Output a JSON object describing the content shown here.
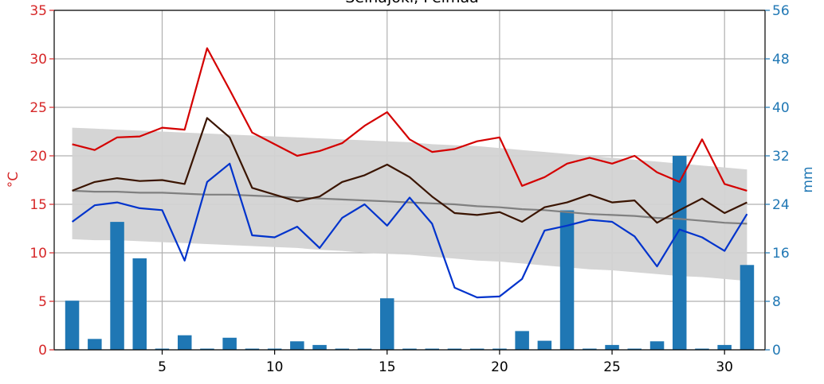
{
  "chart_data": {
    "type": "line",
    "title": "Seinäjoki, Pelmaa",
    "colors": {
      "temp_axis": "#d62728",
      "precip_axis": "#1f77b4",
      "tmax": "#d40000",
      "tmean": "#3a1400",
      "tmin": "#0033cc",
      "climate_mean": "#808080",
      "climate_band": "#d3d3d3",
      "precip_bars": "#1f77b4",
      "grid": "#b0b0b0"
    },
    "x": [
      1,
      2,
      3,
      4,
      5,
      6,
      7,
      8,
      9,
      10,
      11,
      12,
      13,
      14,
      15,
      16,
      17,
      18,
      19,
      20,
      21,
      22,
      23,
      24,
      25,
      26,
      27,
      28,
      29,
      30,
      31
    ],
    "xlim": [
      0.2,
      31.8
    ],
    "xticks": [
      5,
      10,
      15,
      20,
      25,
      30
    ],
    "left_axis": {
      "label": "°C",
      "ylim": [
        0,
        35
      ],
      "ticks": [
        0,
        5,
        10,
        15,
        20,
        25,
        30,
        35
      ]
    },
    "right_axis": {
      "label": "mm",
      "ylim": [
        0,
        56
      ],
      "ticks": [
        0,
        8,
        16,
        24,
        32,
        40,
        48,
        56
      ]
    },
    "grid": true,
    "series": [
      {
        "key": "tmax",
        "axis": "left",
        "kind": "line",
        "values": [
          21.2,
          20.6,
          21.9,
          22.0,
          22.9,
          22.7,
          31.1,
          26.8,
          22.4,
          21.2,
          20.0,
          20.5,
          21.3,
          23.1,
          24.5,
          21.7,
          20.4,
          20.7,
          21.5,
          21.9,
          16.9,
          17.8,
          19.2,
          19.8,
          19.2,
          20.0,
          18.3,
          17.3,
          21.7,
          17.1,
          16.4
        ]
      },
      {
        "key": "tmean",
        "axis": "left",
        "kind": "line",
        "values": [
          16.4,
          17.3,
          17.7,
          17.4,
          17.5,
          17.1,
          23.9,
          21.9,
          16.7,
          16.0,
          15.3,
          15.8,
          17.3,
          18.0,
          19.1,
          17.8,
          15.8,
          14.1,
          13.9,
          14.2,
          13.2,
          14.7,
          15.2,
          16.0,
          15.2,
          15.4,
          13.1,
          14.4,
          15.6,
          14.1,
          15.2
        ]
      },
      {
        "key": "tmin",
        "axis": "left",
        "kind": "line",
        "values": [
          13.2,
          14.9,
          15.2,
          14.6,
          14.4,
          9.2,
          17.3,
          19.2,
          11.8,
          11.6,
          12.7,
          10.5,
          13.6,
          15.0,
          12.8,
          15.7,
          13.0,
          6.4,
          5.4,
          5.5,
          7.3,
          12.3,
          12.8,
          13.4,
          13.2,
          11.7,
          8.6,
          12.4,
          11.6,
          10.2,
          14.0
        ]
      },
      {
        "key": "climate_mean",
        "axis": "left",
        "kind": "line",
        "values": [
          16.4,
          16.3,
          16.3,
          16.2,
          16.2,
          16.1,
          16.0,
          16.0,
          15.9,
          15.8,
          15.7,
          15.6,
          15.5,
          15.4,
          15.3,
          15.2,
          15.1,
          15.0,
          14.8,
          14.7,
          14.5,
          14.4,
          14.2,
          14.0,
          13.9,
          13.8,
          13.6,
          13.5,
          13.3,
          13.1,
          13.0
        ]
      },
      {
        "key": "climate_upper",
        "axis": "left",
        "kind": "band_upper",
        "values": [
          22.9,
          22.8,
          22.7,
          22.6,
          22.5,
          22.4,
          22.3,
          22.2,
          22.1,
          22.0,
          21.9,
          21.8,
          21.7,
          21.6,
          21.5,
          21.4,
          21.2,
          21.1,
          21.0,
          20.8,
          20.6,
          20.4,
          20.2,
          20.0,
          19.8,
          19.6,
          19.4,
          19.2,
          19.0,
          18.8,
          18.6
        ]
      },
      {
        "key": "climate_lower",
        "axis": "left",
        "kind": "band_lower",
        "values": [
          11.4,
          11.3,
          11.3,
          11.2,
          11.1,
          11.0,
          10.9,
          10.8,
          10.7,
          10.6,
          10.5,
          10.3,
          10.2,
          10.0,
          9.9,
          9.8,
          9.6,
          9.4,
          9.2,
          9.1,
          8.9,
          8.7,
          8.5,
          8.3,
          8.2,
          8.0,
          7.8,
          7.6,
          7.5,
          7.3,
          7.1
        ]
      },
      {
        "key": "precip",
        "axis": "right",
        "kind": "bar",
        "values": [
          8.1,
          1.8,
          21.1,
          15.1,
          0.2,
          2.4,
          0.2,
          2.0,
          0.2,
          0.2,
          1.4,
          0.8,
          0.2,
          0.2,
          8.5,
          0.2,
          0.2,
          0.2,
          0.2,
          0.2,
          3.1,
          1.5,
          23.0,
          0.2,
          0.8,
          0.2,
          1.4,
          32.0,
          0.2,
          0.8,
          14.0
        ]
      }
    ]
  }
}
